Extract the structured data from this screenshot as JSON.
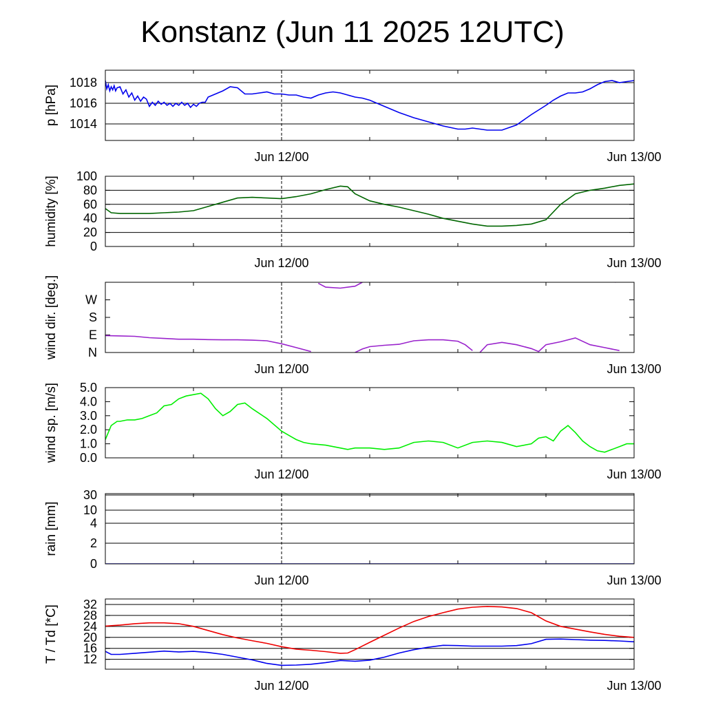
{
  "title": "Konstanz (Jun 11 2025 12UTC)",
  "x_axis": {
    "tick_labels": [
      "Jun 12/00",
      "Jun 13/00"
    ],
    "range_hours": [
      0,
      36
    ],
    "tick_hours": [
      12,
      36
    ]
  },
  "chart_data": [
    {
      "type": "line",
      "ylabel": "p [hPa]",
      "ylim": [
        1012.4,
        1019.2
      ],
      "yticks": [
        1014,
        1016,
        1018
      ],
      "gridlines": [
        1014,
        1016,
        1018
      ],
      "series": [
        {
          "color": "#0000ee",
          "x": [
            0,
            0.1,
            0.2,
            0.3,
            0.4,
            0.5,
            0.6,
            0.7,
            0.8,
            1,
            1.2,
            1.4,
            1.6,
            1.8,
            2,
            2.2,
            2.4,
            2.6,
            2.8,
            3,
            3.2,
            3.4,
            3.6,
            3.8,
            4,
            4.2,
            4.4,
            4.6,
            4.8,
            5,
            5.2,
            5.4,
            5.6,
            5.8,
            6,
            6.2,
            6.4,
            6.6,
            6.8,
            7,
            7.5,
            8,
            8.5,
            9,
            9.5,
            10,
            10.5,
            11,
            11.5,
            12,
            12.5,
            13,
            13.5,
            14,
            14.5,
            15,
            15.5,
            16,
            16.5,
            17,
            17.5,
            18,
            19,
            20,
            21,
            22,
            23,
            24,
            24.5,
            25,
            25.5,
            26,
            27,
            28,
            29,
            30,
            30.5,
            31,
            31.5,
            32,
            32.5,
            33,
            33.5,
            34,
            34.5,
            35,
            35.5,
            36
          ],
          "values": [
            1018.2,
            1017.4,
            1017.8,
            1017.2,
            1017.6,
            1017.3,
            1017.7,
            1017.2,
            1017.5,
            1017.6,
            1016.9,
            1017.3,
            1016.6,
            1017.0,
            1016.3,
            1016.7,
            1016.2,
            1016.6,
            1016.4,
            1015.7,
            1016.1,
            1015.8,
            1016.2,
            1015.9,
            1016.1,
            1015.8,
            1016.0,
            1015.7,
            1016.0,
            1015.8,
            1016.1,
            1015.8,
            1016.0,
            1015.6,
            1015.9,
            1015.7,
            1016.0,
            1016.1,
            1016.1,
            1016.6,
            1016.9,
            1017.2,
            1017.6,
            1017.5,
            1016.9,
            1016.9,
            1017.0,
            1017.1,
            1016.9,
            1016.9,
            1016.8,
            1016.8,
            1016.6,
            1016.5,
            1016.8,
            1017.0,
            1017.1,
            1017.0,
            1016.8,
            1016.6,
            1016.5,
            1016.3,
            1015.7,
            1015.1,
            1014.6,
            1014.2,
            1013.8,
            1013.5,
            1013.5,
            1013.6,
            1013.5,
            1013.4,
            1013.4,
            1013.9,
            1014.9,
            1015.8,
            1016.3,
            1016.7,
            1017.0,
            1017.0,
            1017.1,
            1017.4,
            1017.8,
            1018.1,
            1018.2,
            1018.0,
            1018.1,
            1018.2
          ]
        }
      ]
    },
    {
      "type": "line",
      "ylabel": "humidity [%]",
      "ylim": [
        0,
        100
      ],
      "yticks": [
        0,
        20,
        40,
        60,
        80,
        100
      ],
      "gridlines": [
        20,
        40,
        60,
        80
      ],
      "series": [
        {
          "color": "#006600",
          "x": [
            0,
            0.4,
            1,
            2,
            3,
            4,
            5,
            6,
            7,
            8,
            9,
            10,
            11,
            12,
            13,
            14,
            15,
            16,
            16.5,
            17,
            18,
            19,
            20,
            21,
            22,
            23,
            24,
            25,
            26,
            27,
            28,
            29,
            30,
            31,
            32,
            33,
            34,
            35,
            36
          ],
          "values": [
            54,
            48,
            47,
            47,
            47,
            48,
            49,
            51,
            57,
            63,
            69,
            70,
            69,
            68,
            71,
            75,
            81,
            86,
            85,
            75,
            65,
            60,
            56,
            51,
            46,
            40,
            36,
            32,
            29,
            29,
            30,
            32,
            38,
            60,
            75,
            80,
            83,
            87,
            89
          ]
        }
      ]
    },
    {
      "type": "line",
      "ylabel": "wind dir. [deg.]",
      "ylim": [
        0,
        360
      ],
      "yticks": [
        0,
        90,
        180,
        270
      ],
      "ytick_labels": [
        "N",
        "E",
        "S",
        "W"
      ],
      "series": [
        {
          "color": "#9922cc",
          "x": [
            0,
            1,
            2,
            3,
            4,
            5,
            6,
            7,
            8,
            9,
            10,
            11,
            12,
            13,
            14,
            null,
            14.5,
            15,
            16,
            17,
            17.5,
            null,
            17,
            17.5,
            18,
            19,
            20,
            21,
            22,
            23,
            24,
            24.5,
            25,
            null,
            25.5,
            26,
            27,
            28,
            29,
            29.5,
            30,
            31,
            32,
            33,
            34,
            35,
            null,
            36,
            35.7,
            35.3,
            35,
            34.7,
            null,
            26,
            27,
            28,
            28.8
          ],
          "values": [
            87,
            85,
            83,
            76,
            72,
            68,
            68,
            66,
            65,
            65,
            63,
            60,
            45,
            25,
            5,
            null,
            355,
            335,
            330,
            340,
            360,
            null,
            0,
            18,
            30,
            37,
            42,
            60,
            65,
            65,
            58,
            40,
            10,
            null,
            0,
            40,
            52,
            40,
            20,
            5,
            40,
            55,
            75,
            40,
            25,
            10,
            null,
            380,
            378,
            372,
            365,
            360,
            null,
            380,
            365,
            365,
            380
          ]
        }
      ]
    },
    {
      "type": "line",
      "ylabel": "wind sp. [m/s]",
      "ylim": [
        0,
        5
      ],
      "yticks": [
        0,
        1,
        2,
        3,
        4,
        5
      ],
      "ytick_labels": [
        "0.0",
        "1.0",
        "2.0",
        "3.0",
        "4.0",
        "5.0"
      ],
      "series": [
        {
          "color": "#00ee00",
          "x": [
            0,
            0.4,
            0.8,
            1,
            1.5,
            2,
            2.5,
            3,
            3.5,
            4,
            4.5,
            5,
            5.5,
            6,
            6.5,
            7,
            7.5,
            8,
            8.5,
            9,
            9.5,
            10,
            11,
            12,
            12.5,
            13,
            13.5,
            14,
            15,
            16,
            16.5,
            17,
            17.5,
            18,
            19,
            20,
            21,
            22,
            23,
            24,
            25,
            26,
            27,
            28,
            29,
            29.5,
            30,
            30.5,
            31,
            31.5,
            32,
            32.5,
            33,
            33.5,
            34,
            34.5,
            35,
            35.5,
            36
          ],
          "values": [
            1.3,
            2.3,
            2.6,
            2.6,
            2.7,
            2.7,
            2.8,
            3.0,
            3.2,
            3.7,
            3.8,
            4.2,
            4.4,
            4.5,
            4.6,
            4.2,
            3.5,
            3.0,
            3.3,
            3.8,
            3.9,
            3.5,
            2.8,
            1.9,
            1.6,
            1.3,
            1.1,
            1.0,
            0.9,
            0.7,
            0.6,
            0.7,
            0.7,
            0.7,
            0.6,
            0.7,
            1.1,
            1.2,
            1.1,
            0.7,
            1.1,
            1.2,
            1.1,
            0.8,
            1.0,
            1.4,
            1.5,
            1.2,
            1.9,
            2.3,
            1.8,
            1.2,
            0.8,
            0.5,
            0.4,
            0.6,
            0.8,
            1.0,
            1.0
          ]
        }
      ]
    },
    {
      "type": "line",
      "ylabel": "rain [mm]",
      "ylim": [
        0,
        30
      ],
      "yticks": [
        0,
        2,
        4,
        10,
        30
      ],
      "gridlines": [
        2,
        4,
        10,
        30
      ],
      "scale": "nonlinear",
      "series": [
        {
          "color": "#0000ee",
          "x": [
            0,
            36
          ],
          "values": [
            0,
            0
          ]
        }
      ]
    },
    {
      "type": "line",
      "ylabel": "T / Td [*C]",
      "ylim": [
        8.4,
        34
      ],
      "yticks": [
        12,
        16,
        20,
        24,
        28,
        32
      ],
      "gridlines": [
        12,
        16,
        20,
        24,
        28,
        32
      ],
      "series": [
        {
          "color": "#ee0000",
          "x": [
            0,
            1,
            2,
            3,
            4,
            5,
            6,
            7,
            8,
            9,
            10,
            11,
            12,
            13,
            14,
            15,
            16,
            16.5,
            17,
            18,
            19,
            20,
            21,
            22,
            23,
            24,
            25,
            26,
            27,
            28,
            29,
            30,
            31,
            32,
            33,
            34,
            35,
            36
          ],
          "values": [
            24.1,
            24.5,
            25.0,
            25.3,
            25.3,
            25.0,
            24.0,
            22.5,
            21.0,
            19.8,
            18.8,
            17.8,
            16.6,
            15.7,
            15.3,
            14.8,
            14.2,
            14.3,
            15.5,
            18.2,
            20.8,
            23.4,
            25.8,
            27.6,
            29.0,
            30.3,
            31.0,
            31.3,
            31.1,
            30.5,
            29.0,
            26.0,
            24.0,
            23.0,
            22.0,
            21.1,
            20.4,
            20.0
          ]
        },
        {
          "color": "#0000ee",
          "x": [
            0,
            0.4,
            1,
            2,
            3,
            4,
            5,
            6,
            7,
            8,
            9,
            10,
            11,
            12,
            13,
            14,
            15,
            16,
            17,
            18,
            19,
            20,
            21,
            22,
            23,
            24,
            25,
            26,
            27,
            28,
            29,
            30,
            31,
            32,
            33,
            34,
            35,
            36
          ],
          "values": [
            14.9,
            13.8,
            13.8,
            14.2,
            14.6,
            15.0,
            14.7,
            14.9,
            14.5,
            13.8,
            12.8,
            11.8,
            10.5,
            9.8,
            9.9,
            10.2,
            10.8,
            11.6,
            11.3,
            11.7,
            12.8,
            14.3,
            15.5,
            16.4,
            17.1,
            17.0,
            16.8,
            16.8,
            16.8,
            17.0,
            17.7,
            19.3,
            19.4,
            19.2,
            19.0,
            18.9,
            18.7,
            18.4
          ]
        }
      ]
    }
  ]
}
